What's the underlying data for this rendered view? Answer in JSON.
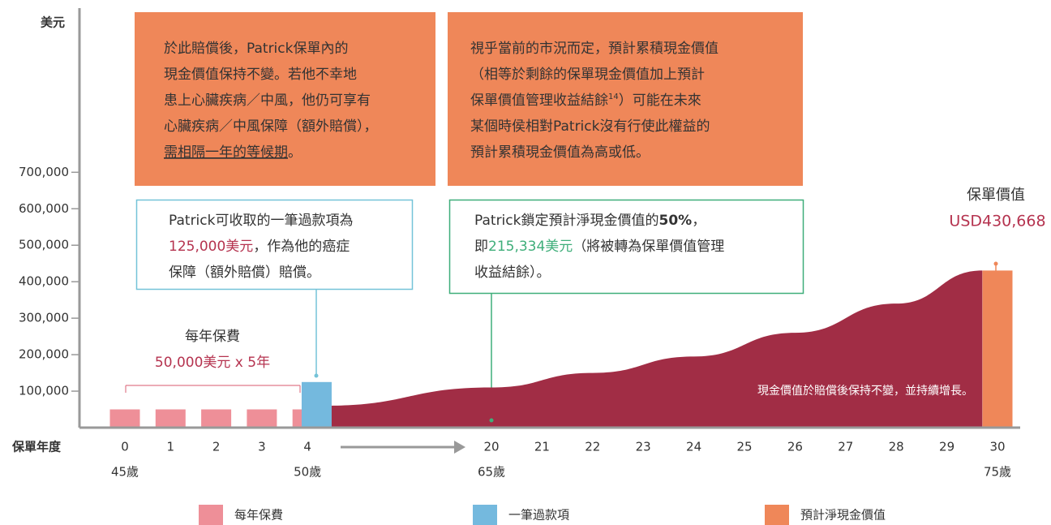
{
  "chart_data": {
    "type": "bar",
    "y_label": "美元",
    "x_label": "保單年度",
    "ylim": [
      0,
      1150000
    ],
    "yticks": [
      {
        "value": 100000,
        "label": "100,000"
      },
      {
        "value": 200000,
        "label": "200,000"
      },
      {
        "value": 300000,
        "label": "300,000"
      },
      {
        "value": 400000,
        "label": "400,000"
      },
      {
        "value": 500000,
        "label": "500,000"
      },
      {
        "value": 600000,
        "label": "600,000"
      },
      {
        "value": 700000,
        "label": "700,000"
      }
    ],
    "xticks": [
      0,
      1,
      2,
      3,
      4,
      20,
      21,
      22,
      23,
      24,
      25,
      26,
      27,
      28,
      29,
      30
    ],
    "age_labels": {
      "x": [
        0,
        4,
        20,
        30
      ],
      "labels": [
        "45歲",
        "50歲",
        "65歲",
        "75歲"
      ]
    },
    "series": [
      {
        "name": "每年保費",
        "type": "bar",
        "color": "#ee8f98",
        "x": [
          0,
          1,
          2,
          3,
          4
        ],
        "values": [
          50000,
          50000,
          50000,
          50000,
          50000
        ]
      },
      {
        "name": "一筆過款項",
        "type": "bar",
        "color": "#74b9de",
        "x": [
          4.2
        ],
        "values": [
          125000
        ]
      },
      {
        "name": "現金價值",
        "type": "area",
        "color": "#a12d45",
        "x": [
          4.4,
          20,
          22,
          24,
          26,
          28,
          29.7
        ],
        "values": [
          60000,
          110000,
          150000,
          195000,
          260000,
          340000,
          430668
        ]
      },
      {
        "name": "預計淨現金價值",
        "type": "bar",
        "color": "#ef8759",
        "x": [
          30
        ],
        "values": [
          430668
        ],
        "value_labels": [
          "USD430,668"
        ]
      }
    ],
    "legend": [
      0,
      1,
      3
    ],
    "annotations": {
      "box1": [
        [
          "於此賠償後，Patrick保單內的"
        ],
        [
          "現金價值保持不變。若他不幸地"
        ],
        [
          "患上心臟疾病／中風，他仍可享有"
        ],
        [
          "心臟疾病／中風保障（額外賠償），"
        ],
        [
          "需相隔一年的等候期",
          "。"
        ]
      ],
      "box2": [
        [
          "視乎當前的市況而定，預計累積現金價值"
        ],
        [
          "（相等於剩餘的保單現金價值加上預計"
        ],
        [
          "保單價值管理收益結餘",
          "14",
          "）可能在未來"
        ],
        [
          "某個時侯相對Patrick沒有行使此權益的"
        ],
        [
          "預計累積現金價值為高或低。"
        ]
      ],
      "box3": [
        [
          "Patrick可收取的一筆過款項為"
        ],
        [
          "125,000美元",
          "，作為他的癌症"
        ],
        [
          "保障（額外賠償）賠償。"
        ]
      ],
      "box4": [
        [
          "Patrick鎖定預計淨現金價值的",
          "50%",
          "，"
        ],
        [
          "即",
          "215,334美元",
          "（將被轉為保單價值管理"
        ],
        [
          "收益結餘）。"
        ]
      ],
      "premium_title": "每年保費",
      "premium_amount": "50,000美元 x 5年",
      "policy_value": "保單價值",
      "area_note": "現金價值於賠償後保持不變，並持續增長。"
    }
  }
}
